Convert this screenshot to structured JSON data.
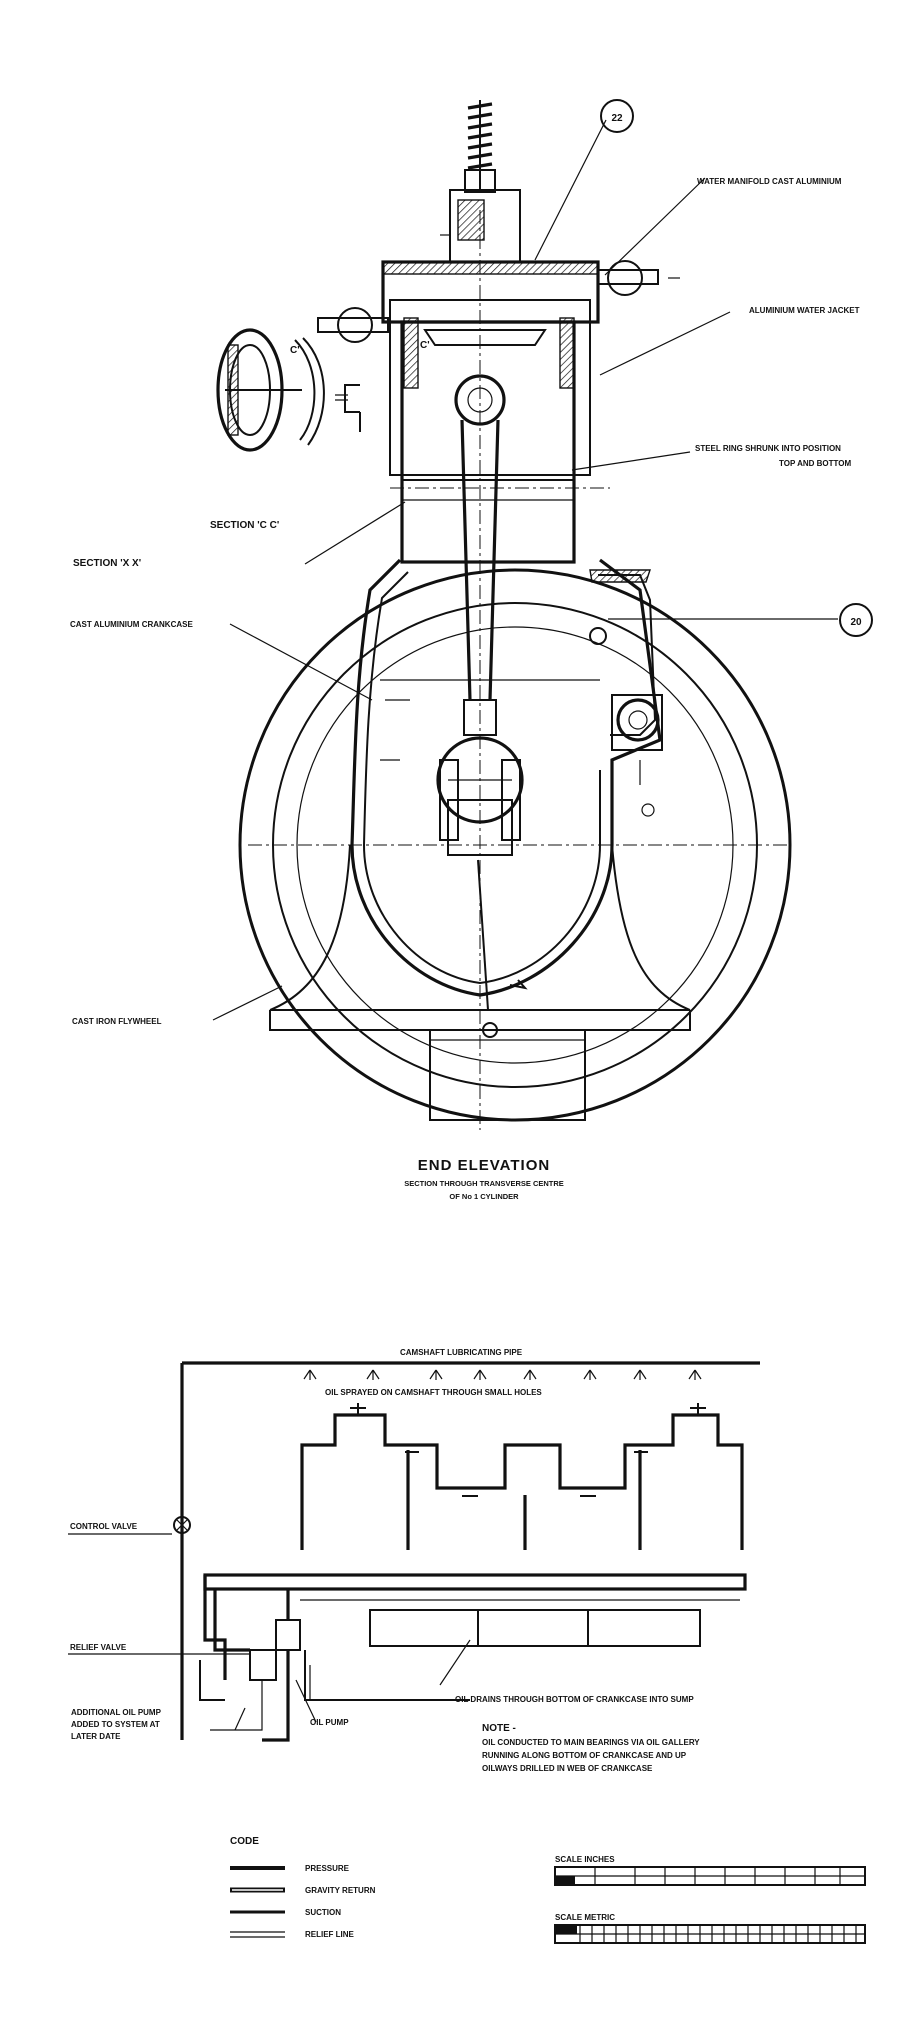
{
  "elevation": {
    "callout_a": "22",
    "callout_b": "20",
    "label_water_manifold": "WATER MANIFOLD CAST ALUMINIUM",
    "label_water_jacket": "ALUMINIUM WATER JACKET",
    "label_steel_ring_1": "STEEL RING SHRUNK INTO POSITION",
    "label_steel_ring_2": "TOP AND BOTTOM",
    "label_section_cc": "SECTION 'C C'",
    "label_section_xx": "SECTION 'X X'",
    "label_crankcase": "CAST ALUMINIUM CRANKCASE",
    "label_flywheel": "CAST IRON FLYWHEEL",
    "marker_c_left": "C'",
    "marker_c_right": "C'",
    "title": "END ELEVATION",
    "subtitle_1": "SECTION THROUGH TRANSVERSE CENTRE",
    "subtitle_2": "OF No 1 CYLINDER"
  },
  "oil_system": {
    "label_camshaft_pipe": "CAMSHAFT LUBRICATING PIPE",
    "label_oil_sprayed": "OIL SPRAYED ON CAMSHAFT THROUGH SMALL HOLES",
    "label_control_valve": "CONTROL VALVE",
    "label_relief_valve": "RELIEF VALVE",
    "label_additional_pump_1": "ADDITIONAL OIL PUMP",
    "label_additional_pump_2": "ADDED TO SYSTEM AT",
    "label_additional_pump_3": "LATER DATE",
    "label_oil_pump": "OIL PUMP",
    "label_oil_drains": "OIL DRAINS THROUGH BOTTOM OF CRANKCASE INTO SUMP",
    "note_heading": "NOTE -",
    "note_line_1": "OIL CONDUCTED TO MAIN BEARINGS VIA OIL GALLERY",
    "note_line_2": "RUNNING ALONG BOTTOM OF CRANKCASE AND UP",
    "note_line_3": "OILWAYS DRILLED IN WEB OF CRANKCASE"
  },
  "legend": {
    "heading": "CODE",
    "items": [
      {
        "label": "PRESSURE",
        "style": "pressure"
      },
      {
        "label": "GRAVITY RETURN",
        "style": "gravity"
      },
      {
        "label": "SUCTION",
        "style": "suction"
      },
      {
        "label": "RELIEF LINE",
        "style": "relief"
      }
    ]
  },
  "scales": {
    "inches_label": "SCALE INCHES",
    "metric_label": "SCALE METRIC"
  },
  "colors": {
    "ink": "#111111",
    "paper": "#ffffff"
  }
}
